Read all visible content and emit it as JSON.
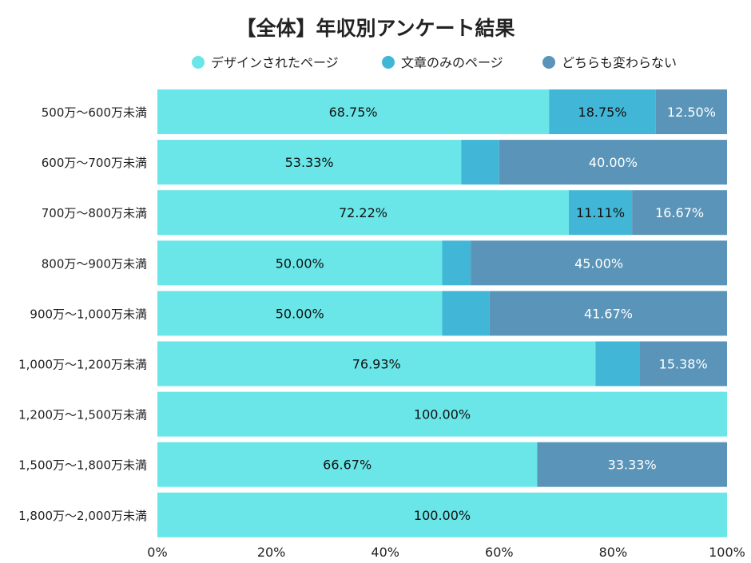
{
  "chart_data": {
    "type": "bar",
    "orientation": "horizontal",
    "stacked": true,
    "title": "【全体】年収別アンケート結果",
    "categories": [
      "500万〜600万未満",
      "600万〜700万未満",
      "700万〜800万未満",
      "800万〜900万未満",
      "900万〜1,000万未満",
      "1,000万〜1,200万未満",
      "1,200万〜1,500万未満",
      "1,500万〜1,800万未満",
      "1,800万〜2,000万未満"
    ],
    "series": [
      {
        "name": "デザインされたページ",
        "color": "#6ae6e8",
        "label_color": "#111111",
        "values": [
          68.75,
          53.33,
          72.22,
          50.0,
          50.0,
          76.93,
          100.0,
          66.67,
          100.0
        ],
        "labels": [
          "68.75%",
          "53.33%",
          "72.22%",
          "50.00%",
          "50.00%",
          "76.93%",
          "100.00%",
          "66.67%",
          "100.00%"
        ]
      },
      {
        "name": "文章のみのページ",
        "color": "#42b6d6",
        "label_color": "#111111",
        "values": [
          18.75,
          6.67,
          11.11,
          5.0,
          8.33,
          7.69,
          0,
          0,
          0
        ],
        "labels": [
          "18.75%",
          "",
          "11.11%",
          "",
          "",
          "",
          "",
          "",
          ""
        ]
      },
      {
        "name": "どちらも変わらない",
        "color": "#5a94b8",
        "label_color": "#ffffff",
        "values": [
          12.5,
          40.0,
          16.67,
          45.0,
          41.67,
          15.38,
          0,
          33.33,
          0
        ],
        "labels": [
          "12.50%",
          "40.00%",
          "16.67%",
          "45.00%",
          "41.67%",
          "15.38%",
          "",
          "33.33%",
          ""
        ]
      }
    ],
    "xlim": [
      0,
      100
    ],
    "xticks": [
      "0%",
      "20%",
      "40%",
      "60%",
      "80%",
      "100%"
    ],
    "grid": false,
    "legend_position": "top"
  }
}
